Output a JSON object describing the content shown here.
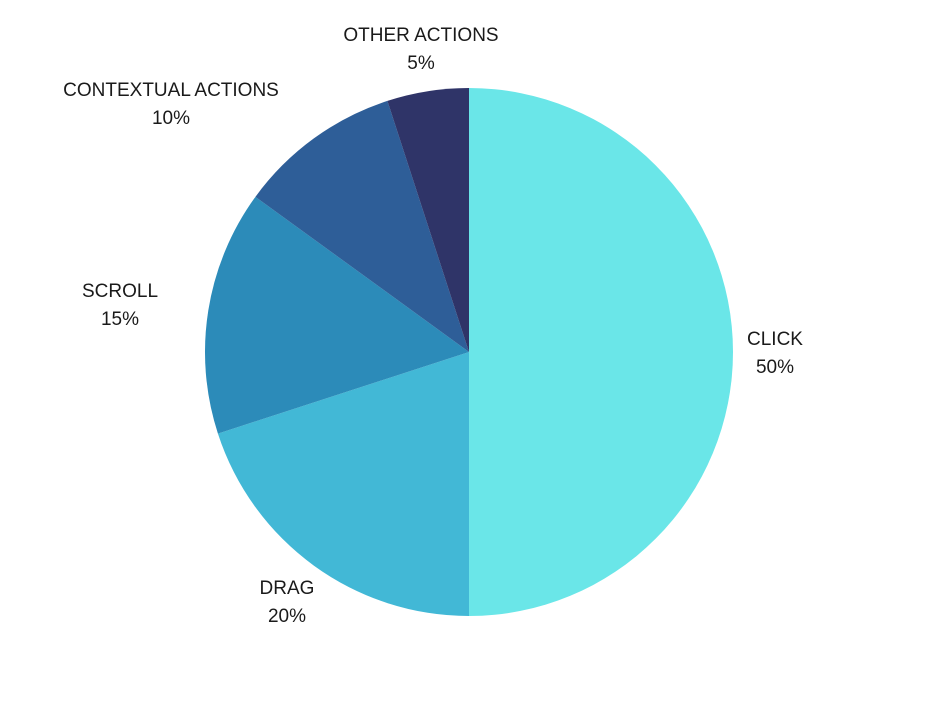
{
  "chart_data": {
    "type": "pie",
    "title": "",
    "start_angle_deg": 0,
    "direction": "clockwise",
    "legend": "none",
    "slices": [
      {
        "label": "CLICK",
        "value": 50,
        "value_label": "50%",
        "color": "#6ae6e8"
      },
      {
        "label": "DRAG",
        "value": 20,
        "value_label": "20%",
        "color": "#42b8d6"
      },
      {
        "label": "SCROLL",
        "value": 15,
        "value_label": "15%",
        "color": "#2c8bb9"
      },
      {
        "label": "CONTEXTUAL ACTIONS",
        "value": 10,
        "value_label": "10%",
        "color": "#2e5e98"
      },
      {
        "label": "OTHER ACTIONS",
        "value": 5,
        "value_label": "5%",
        "color": "#2f3468"
      }
    ]
  }
}
